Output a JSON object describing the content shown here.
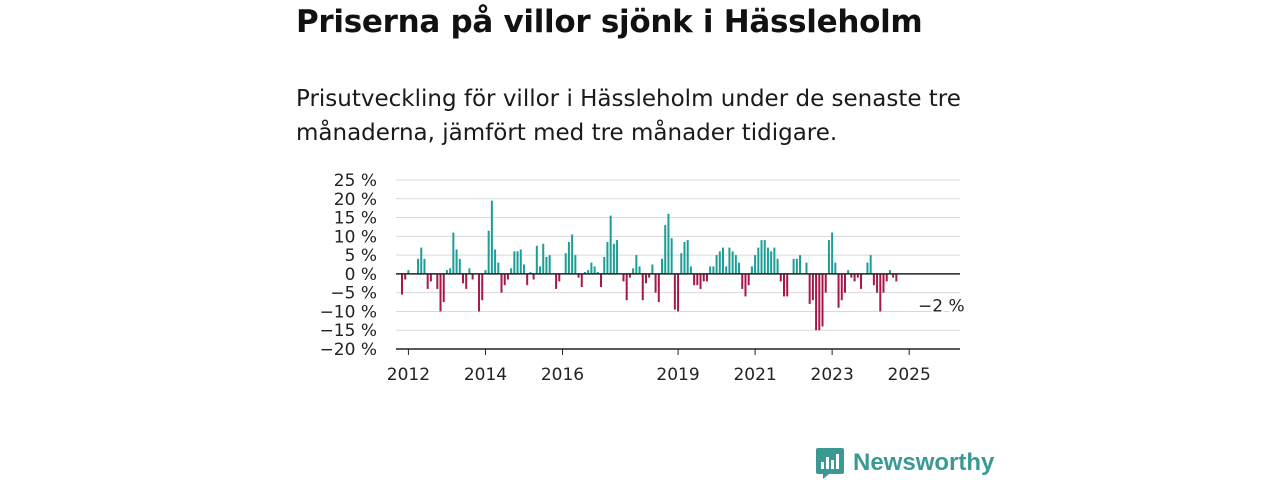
{
  "header": {
    "title": "Priserna på villor sjönk i Hässleholm",
    "subtitle": "Prisutveckling för villor i Hässleholm under de senaste tre månaderna, jämfört med tre månader tidigare."
  },
  "brand": {
    "name": "Newsworthy",
    "icon": "newsworthy-logo-icon"
  },
  "colors": {
    "positive": "#1a9e96",
    "negative": "#a8174a",
    "grid": "#d9d9d9",
    "axis": "#222222"
  },
  "chart_data": {
    "type": "bar",
    "x_start": "2011-11",
    "x_step": "month",
    "ylim": [
      -20,
      25
    ],
    "y_ticks": [
      25,
      20,
      15,
      10,
      5,
      0,
      -5,
      -10,
      -15,
      -20
    ],
    "y_tick_labels": [
      "25 %",
      "20 %",
      "15 %",
      "10 %",
      "5 %",
      "0 %",
      "−5 %",
      "−10 %",
      "−15 %",
      "−20 %"
    ],
    "x_tick_labels": [
      {
        "label": "2012",
        "month": "2012-01"
      },
      {
        "label": "2014",
        "month": "2014-01"
      },
      {
        "label": "2016",
        "month": "2016-01"
      },
      {
        "label": "2019",
        "month": "2019-01"
      },
      {
        "label": "2021",
        "month": "2021-01"
      },
      {
        "label": "2023",
        "month": "2023-01"
      },
      {
        "label": "2025",
        "month": "2025-01"
      }
    ],
    "values": [
      -5.5,
      -1.5,
      1,
      0,
      0,
      4,
      7,
      4,
      -4,
      -2,
      0,
      -4,
      -10,
      -7.5,
      1,
      1.5,
      11,
      6.5,
      4,
      -2.5,
      -4,
      1.5,
      -1.5,
      0,
      -10,
      -7,
      1,
      11.5,
      19.5,
      6.5,
      3,
      -5,
      -3,
      -1.5,
      1.5,
      6,
      6,
      6.5,
      2.5,
      -3,
      0.5,
      -1.5,
      7.5,
      2,
      8,
      4.5,
      5,
      0,
      -4,
      -2,
      0,
      5.5,
      8.5,
      10.5,
      5,
      -1,
      -3.5,
      0.5,
      1,
      3,
      2,
      0.5,
      -3.5,
      4.5,
      8.5,
      15.5,
      8,
      9,
      0,
      -2,
      -7,
      -1,
      1.5,
      5,
      2,
      -7,
      -2.5,
      -1,
      2.5,
      -5,
      -7.5,
      4,
      13,
      16,
      9.5,
      -9.5,
      -10,
      5.5,
      8.5,
      9,
      2,
      -3,
      -3,
      -4,
      -2,
      -2,
      2,
      2,
      5,
      6,
      7,
      2,
      7,
      6,
      5,
      3,
      -4,
      -6,
      -3,
      2,
      5,
      7,
      9,
      9,
      7,
      6,
      7,
      4,
      -2,
      -6,
      -6,
      0,
      4,
      4,
      5,
      0,
      3,
      -8,
      -7,
      -15,
      -15,
      -14,
      -5,
      9,
      11,
      3,
      -9,
      -7,
      -5,
      1,
      -1,
      -2,
      -1,
      -4,
      0,
      3,
      5,
      -3,
      -5,
      -10,
      -5,
      -2,
      1,
      -1,
      -2
    ],
    "annotation": {
      "text": "−2 %",
      "value": -2,
      "month": "2025-05"
    }
  }
}
